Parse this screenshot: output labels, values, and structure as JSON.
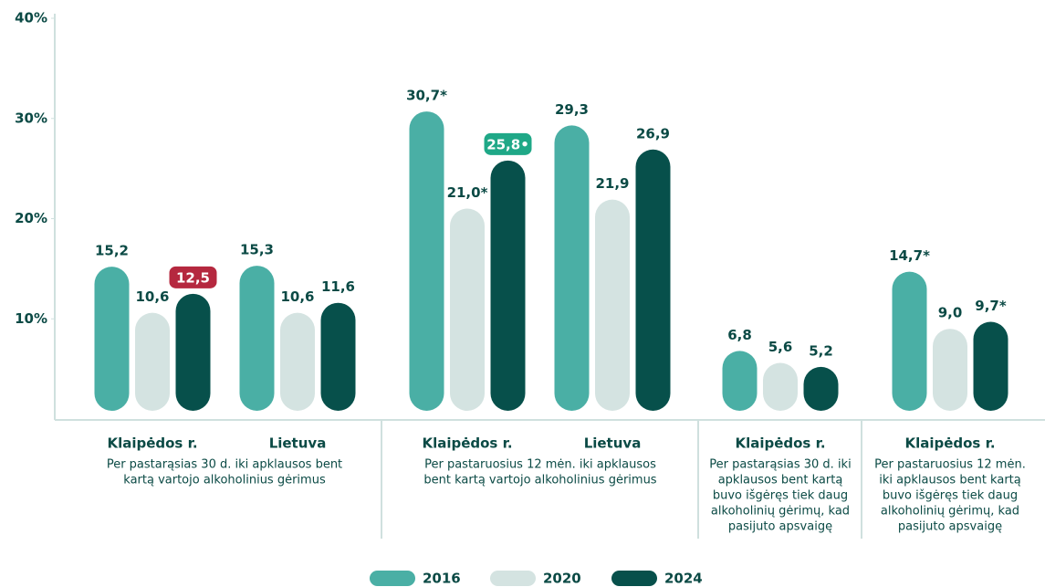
{
  "chart_data": {
    "type": "bar",
    "categories": [
      "Klaipėdos r.",
      "Lietuva",
      "Klaipėdos r.",
      "Lietuva",
      "Klaipėdos r.",
      "Klaipėdos r."
    ],
    "sections": [
      {
        "description": [
          "Per pastarąsias 30 d. iki apklausos bent",
          "kartą vartojo alkoholinius gėrimus"
        ]
      },
      {
        "description": [
          "Per pastaruosius 12 mėn. iki apklausos",
          "bent kartą vartojo alkoholinius gėrimus"
        ]
      },
      {
        "description": [
          "Per pastarąsias 30 d. iki",
          "apklausos bent kartą",
          "buvo išgėręs tiek daug",
          "alkoholinių gėrimų, kad",
          "pasijuto apsvaigę"
        ]
      },
      {
        "description": [
          "Per pastaruosius 12 mėn.",
          "iki apklausos bent kartą",
          "buvo išgėręs tiek daug",
          "alkoholinių gėrimų, kad",
          "pasijuto apsvaigę"
        ]
      }
    ],
    "series": [
      {
        "name": "2016",
        "color": "#4aafa5",
        "values": [
          15.2,
          15.3,
          30.7,
          29.3,
          6.8,
          14.7
        ],
        "value_labels": [
          "15,2",
          "15,3",
          "30,7*",
          "29,3",
          "6,8",
          "14,7*"
        ],
        "badge_colors": [
          null,
          null,
          null,
          null,
          null,
          null
        ]
      },
      {
        "name": "2020",
        "color": "#d4e3e1",
        "values": [
          10.6,
          10.6,
          21.0,
          21.9,
          5.6,
          9.0
        ],
        "value_labels": [
          "10,6",
          "10,6",
          "21,0*",
          "21,9",
          "5,6",
          "9,0"
        ],
        "badge_colors": [
          null,
          null,
          null,
          null,
          null,
          null
        ]
      },
      {
        "name": "2024",
        "color": "#07504b",
        "values": [
          12.5,
          11.6,
          25.8,
          26.9,
          5.2,
          9.7
        ],
        "value_labels": [
          "12,5",
          "11,6",
          "25,8•",
          "26,9",
          "5,2",
          "9,7*"
        ],
        "badge_colors": [
          "#b5283f",
          null,
          "#1fa887",
          null,
          null,
          null
        ]
      }
    ],
    "ylim": [
      0,
      40
    ],
    "yticks": [
      {
        "value": 10,
        "label": "10%"
      },
      {
        "value": 20,
        "label": "20%"
      },
      {
        "value": 30,
        "label": "30%"
      },
      {
        "value": 40,
        "label": "40%"
      }
    ],
    "legend": "bottom"
  }
}
